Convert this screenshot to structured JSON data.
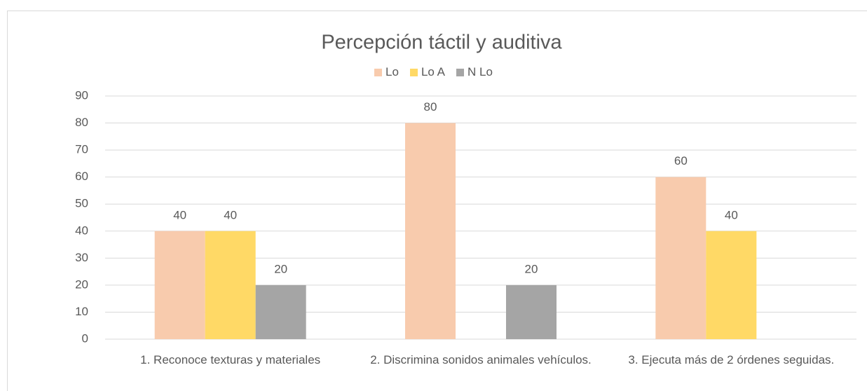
{
  "chart_data": {
    "type": "bar",
    "title": "Percepción táctil y auditiva",
    "categories": [
      "1. Reconoce texturas y materiales",
      "2. Discrimina sonidos animales vehículos.",
      "3. Ejecuta más de 2 órdenes seguidas."
    ],
    "series": [
      {
        "name": "Lo",
        "color": "#f8cbad",
        "values": [
          40,
          80,
          60
        ]
      },
      {
        "name": "Lo A",
        "color": "#ffd966",
        "values": [
          40,
          null,
          40
        ]
      },
      {
        "name": "N Lo",
        "color": "#a5a5a5",
        "values": [
          20,
          20,
          null
        ]
      }
    ],
    "ylim": [
      0,
      90
    ],
    "yticks": [
      0,
      10,
      20,
      30,
      40,
      50,
      60,
      70,
      80,
      90
    ],
    "grid": true,
    "legend": "top"
  }
}
